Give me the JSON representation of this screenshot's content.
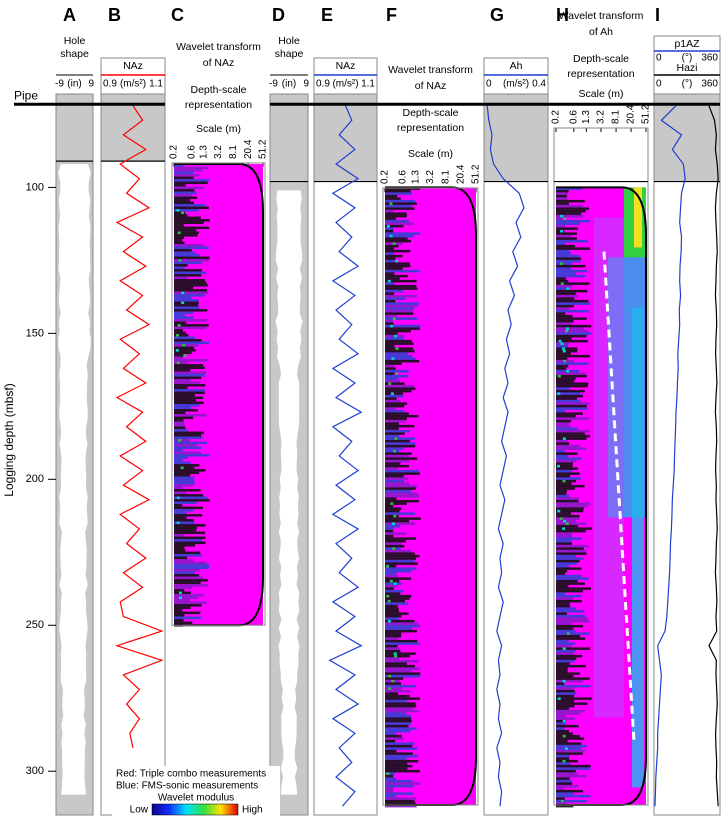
{
  "chart_data": {
    "type": "well-log",
    "y_label": "Logging depth (mbsf)",
    "ylim": [
      68,
      315
    ],
    "yticks": [
      100,
      150,
      200,
      250,
      300
    ],
    "pipe": {
      "label": "Pipe",
      "depth": 71.5
    },
    "letters": [
      "A",
      "B",
      "C",
      "D",
      "E",
      "F",
      "G",
      "H",
      "I"
    ],
    "hole_title": [
      "Hole",
      "shape"
    ],
    "hole_scale": {
      "min": -9,
      "unit": "(in)",
      "max": 9
    },
    "naz_title": "NAz",
    "naz_scale": {
      "min": 0.9,
      "unit": "(m/s²)",
      "max": 1.1
    },
    "ah_title": "Ah",
    "ah_scale": {
      "min": 0,
      "unit": "(m/s²)",
      "max": 0.4
    },
    "p1az_title": "p1AZ",
    "hazi_title": "Hazi",
    "deg_scale": {
      "min": 0,
      "unit": "(°)",
      "max": 360
    },
    "wavelet_naz_title": [
      "Wavelet transform",
      "of NAz"
    ],
    "wavelet_ah_title": [
      "Wavelet transform",
      "of Ah"
    ],
    "depth_scale_title": [
      "Depth-scale",
      "representation"
    ],
    "scale_label": "Scale (m)",
    "scale_ticks": [
      0.2,
      0.6,
      1.3,
      3.2,
      8.1,
      20.4,
      51.2
    ],
    "scale_lim": [
      0.2,
      51.2
    ],
    "scale_log": true,
    "legend": {
      "red": "Red: Triple combo measurements",
      "blue": "Blue: FMS-sonic measurements",
      "title": "Wavelet modulus",
      "low": "Low",
      "high": "High"
    },
    "b_naz": {
      "color": "#ff0000",
      "depth": [
        72,
        77,
        82,
        87,
        92,
        97,
        102,
        107,
        112,
        117,
        122,
        127,
        132,
        137,
        142,
        147,
        152,
        157,
        162,
        167,
        172,
        177,
        182,
        187,
        192,
        197,
        202,
        207,
        212,
        217,
        222,
        227,
        232,
        237,
        242,
        247,
        252,
        257,
        262,
        267,
        272,
        277,
        282,
        287,
        292
      ],
      "values": [
        1.0,
        1.03,
        0.97,
        1.04,
        0.96,
        1.02,
        0.98,
        1.05,
        0.95,
        1.03,
        0.97,
        1.04,
        0.96,
        1.03,
        0.98,
        1.05,
        0.96,
        1.02,
        0.97,
        1.04,
        0.95,
        1.03,
        0.98,
        1.04,
        0.96,
        1.03,
        0.97,
        1.05,
        0.96,
        1.02,
        0.98,
        1.04,
        0.97,
        1.03,
        0.96,
        0.97,
        1.09,
        0.95,
        1.09,
        0.97,
        1.02,
        0.98,
        1.02,
        0.99,
        1.0
      ]
    },
    "e_naz": {
      "color": "#1f3fd0",
      "depth": [
        72,
        77,
        82,
        87,
        92,
        97,
        102,
        107,
        112,
        117,
        122,
        127,
        132,
        137,
        142,
        147,
        152,
        157,
        162,
        167,
        172,
        177,
        182,
        187,
        192,
        197,
        202,
        207,
        212,
        217,
        222,
        227,
        232,
        237,
        242,
        247,
        252,
        257,
        262,
        267,
        272,
        277,
        282,
        287,
        292,
        297,
        302,
        307,
        312
      ],
      "values": [
        1.0,
        1.02,
        0.98,
        1.03,
        0.97,
        1.04,
        0.96,
        1.03,
        0.97,
        1.02,
        0.98,
        1.04,
        0.96,
        1.03,
        0.97,
        1.02,
        0.98,
        1.04,
        0.96,
        1.03,
        0.97,
        1.05,
        0.96,
        1.02,
        0.98,
        1.04,
        0.97,
        1.03,
        0.96,
        1.04,
        0.97,
        1.02,
        0.98,
        1.04,
        0.96,
        1.03,
        0.97,
        1.05,
        0.95,
        1.03,
        0.97,
        1.04,
        0.96,
        1.03,
        0.98,
        1.02,
        0.97,
        1.03,
        0.99
      ]
    },
    "g_ah": {
      "color": "#1f3fd0",
      "depth": [
        72,
        77,
        82,
        87,
        92,
        97,
        102,
        107,
        112,
        117,
        122,
        127,
        132,
        137,
        142,
        147,
        152,
        157,
        162,
        167,
        172,
        177,
        182,
        187,
        192,
        197,
        202,
        207,
        212,
        217,
        222,
        227,
        232,
        237,
        242,
        247,
        252,
        257,
        262,
        267,
        272,
        277,
        282,
        287,
        292,
        297,
        302,
        307,
        312
      ],
      "values": [
        0.02,
        0.03,
        0.05,
        0.04,
        0.06,
        0.12,
        0.22,
        0.25,
        0.2,
        0.23,
        0.18,
        0.21,
        0.16,
        0.19,
        0.15,
        0.17,
        0.14,
        0.16,
        0.13,
        0.15,
        0.12,
        0.15,
        0.13,
        0.11,
        0.14,
        0.12,
        0.1,
        0.13,
        0.11,
        0.09,
        0.12,
        0.1,
        0.11,
        0.09,
        0.12,
        0.1,
        0.08,
        0.11,
        0.09,
        0.1,
        0.08,
        0.1,
        0.09,
        0.11,
        0.08,
        0.1,
        0.09,
        0.11,
        0.1
      ]
    },
    "i_hazi": {
      "color": "#000000",
      "depth": [
        72,
        77,
        82,
        87,
        92,
        97,
        102,
        107,
        112,
        117,
        122,
        127,
        132,
        137,
        142,
        147,
        152,
        157,
        162,
        167,
        172,
        177,
        182,
        187,
        192,
        197,
        202,
        207,
        212,
        217,
        222,
        227,
        232,
        237,
        242,
        247,
        252,
        257,
        262,
        267,
        272,
        277,
        282,
        287,
        292,
        297,
        302,
        307,
        312
      ],
      "values": [
        300,
        330,
        340,
        335,
        345,
        350,
        340,
        335,
        338,
        342,
        345,
        340,
        338,
        335,
        340,
        342,
        338,
        336,
        340,
        343,
        338,
        335,
        340,
        342,
        338,
        336,
        340,
        338,
        342,
        345,
        340,
        338,
        335,
        340,
        343,
        338,
        342,
        300,
        340,
        338,
        342,
        345,
        340,
        336,
        338,
        342,
        340,
        345,
        350
      ]
    },
    "i_p1az": {
      "color": "#1f3fd0",
      "depth": [
        72,
        77,
        82,
        87,
        92,
        97,
        102,
        107,
        112,
        117,
        122,
        127,
        132,
        137,
        142,
        147,
        152,
        157,
        162,
        167,
        172,
        177,
        182,
        187,
        192,
        197,
        202,
        207,
        212,
        217,
        222,
        227,
        232,
        237,
        242,
        247,
        252,
        257,
        262,
        267,
        272,
        277,
        282,
        287,
        292,
        297,
        302,
        307,
        312
      ],
      "values": [
        120,
        40,
        150,
        100,
        160,
        170,
        150,
        145,
        140,
        150,
        148,
        142,
        140,
        145,
        138,
        140,
        135,
        130,
        132,
        128,
        125,
        120,
        118,
        115,
        112,
        110,
        105,
        100,
        98,
        95,
        90,
        88,
        85,
        80,
        75,
        70,
        60,
        20,
        30,
        40,
        35,
        30,
        25,
        20,
        20,
        15,
        10,
        8,
        5
      ]
    }
  }
}
